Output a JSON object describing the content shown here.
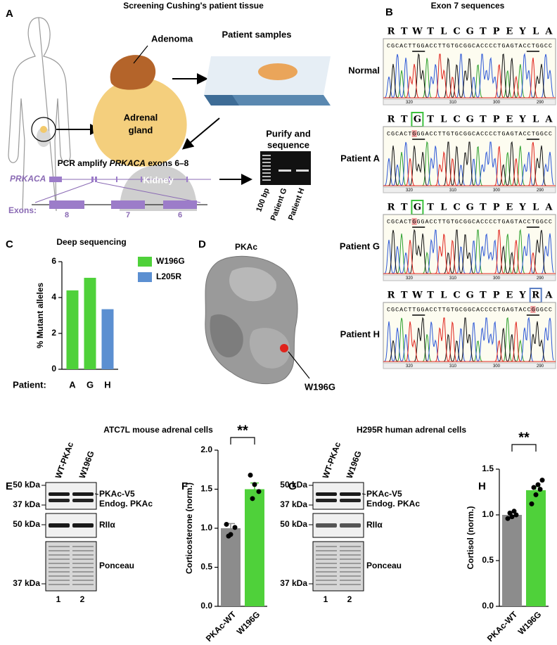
{
  "panel_labels": [
    "A",
    "B",
    "C",
    "D",
    "E",
    "F",
    "G",
    "H"
  ],
  "panel_a": {
    "title": "Screening Cushing's patient tissue",
    "adenoma": "Adenoma",
    "adrenal_gland": [
      "Adrenal",
      "gland"
    ],
    "kidney": "Kidney",
    "samples": "Patient samples",
    "pcr": [
      "PCR amplify ",
      "PRKACA",
      " exons 6–8"
    ],
    "purify": [
      "Purify and",
      "sequence"
    ],
    "gene": "PRKACA",
    "exons_label": "Exons:",
    "exons": [
      "8",
      "7",
      "6"
    ],
    "gel_lanes": [
      "100 bp",
      "Patient G",
      "Patient H"
    ]
  },
  "panel_b": {
    "title": "Exon 7 sequences",
    "positions": [
      320,
      310,
      300,
      290
    ],
    "rows": [
      {
        "label": "Normal",
        "residues": [
          "R",
          "T",
          "W",
          "T",
          "L",
          "C",
          "G",
          "T",
          "P",
          "E",
          "Y",
          "L",
          "A"
        ],
        "sequence": "CGCACTTGGACCTTGTGCGGCACCCCTGAGTACCTGGCC"
      },
      {
        "label": "Patient A",
        "residues": [
          "R",
          "T",
          "G",
          "T",
          "L",
          "C",
          "G",
          "T",
          "P",
          "E",
          "Y",
          "L",
          "A"
        ],
        "boxed": 2,
        "boxed_color": "#3cc13c",
        "sequence": "CGCACTGGGACCTTGTGCGGCACCCCTGAGTACCTGGCC",
        "highlight": 6
      },
      {
        "label": "Patient G",
        "residues": [
          "R",
          "T",
          "G",
          "T",
          "L",
          "C",
          "G",
          "T",
          "P",
          "E",
          "Y",
          "L",
          "A"
        ],
        "boxed": 2,
        "boxed_color": "#3cc13c",
        "sequence": "CGCACTGGGACCTTGTGCGGCACCCCTGAGTACCTGGCC",
        "highlight": 6
      },
      {
        "label": "Patient H",
        "residues": [
          "R",
          "T",
          "W",
          "T",
          "L",
          "C",
          "G",
          "T",
          "P",
          "E",
          "Y",
          "R",
          "A"
        ],
        "boxed": 11,
        "boxed_color": "#5b7fc4",
        "sequence": "CGCACTTGGACCTTGTGCGGCACCCCTGAGTACCGGGCC",
        "highlight": 34
      }
    ]
  },
  "panel_d": {
    "title": "PKAc",
    "label": "W196G"
  },
  "panel_e": {
    "title": "ATC7L mouse adrenal cells",
    "lanes": [
      "WT-PKAc",
      "W196G"
    ],
    "markers": [
      "50 kDa",
      "37 kDa",
      "50 kDa",
      "37 kDa"
    ],
    "bands": [
      "PKAc-V5",
      "Endog. PKAc",
      "RIIα",
      "Ponceau"
    ],
    "lane_numbers": [
      "1",
      "2"
    ]
  },
  "panel_g": {
    "title": "H295R human adrenal cells",
    "lanes": [
      "WT-PKAc",
      "W196G"
    ],
    "markers": [
      "50 kDa",
      "37 kDa",
      "50 kDa",
      "37 kDa"
    ],
    "bands": [
      "PKAc-V5",
      "Endog. PKAc",
      "RIIα",
      "Ponceau"
    ],
    "lane_numbers": [
      "1",
      "2"
    ]
  },
  "chart_data": [
    {
      "type": "bar",
      "title": "Deep sequencing",
      "ylabel": "% Mutant alleles",
      "xlabel": "Patient:",
      "categories": [
        "A",
        "G",
        "H"
      ],
      "series": [
        {
          "name": "W196G",
          "color": "#4fd13a",
          "values": [
            4.4,
            5.1,
            null
          ]
        },
        {
          "name": "L205R",
          "color": "#5b8fd1",
          "values": [
            null,
            null,
            3.35
          ]
        }
      ],
      "ylim": [
        0,
        6
      ],
      "yticks": [
        0,
        2,
        4,
        6
      ]
    },
    {
      "type": "bar",
      "ylabel": "Corticosterone (norm.)",
      "categories": [
        "PKAc-WT",
        "W196G"
      ],
      "values": [
        1.0,
        1.5
      ],
      "errors": [
        0.06,
        0.08
      ],
      "colors": [
        "#8c8c8c",
        "#4fd13a"
      ],
      "points": [
        [
          1.05,
          0.92,
          1.01,
          0.9
        ],
        [
          1.68,
          1.56,
          1.47,
          1.38
        ]
      ],
      "ylim": [
        0,
        2
      ],
      "yticks": [
        {
          "value": 0,
          "label": "0.0"
        },
        0.5,
        {
          "value": 1,
          "label": "1.0"
        },
        1.5,
        {
          "value": 2,
          "label": "2.0"
        }
      ],
      "significance": "**"
    },
    {
      "type": "bar",
      "ylabel": "Cortisol (norm.)",
      "categories": [
        "PKAc-WT",
        "W196G"
      ],
      "values": [
        1.0,
        1.27
      ],
      "errors": [
        0.02,
        0.04
      ],
      "colors": [
        "#8c8c8c",
        "#4fd13a"
      ],
      "points": [
        [
          0.96,
          0.98,
          1.0,
          1.02,
          1.04
        ],
        [
          1.12,
          1.22,
          1.28,
          1.3,
          1.33,
          1.38
        ]
      ],
      "ylim": [
        0,
        1.5
      ],
      "yticks": [
        {
          "value": 0,
          "label": "0.0"
        },
        0.5,
        {
          "value": 1,
          "label": "1.0"
        },
        1.5
      ],
      "significance": "**"
    }
  ]
}
